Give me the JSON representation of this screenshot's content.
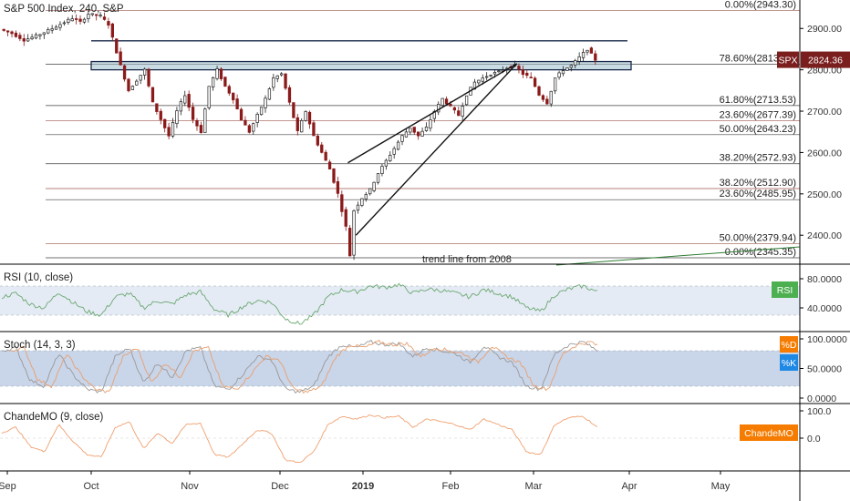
{
  "chart_data": {
    "type": "candlestick",
    "title": "S&P 500 Index, 240, S&P",
    "symbol": "SPX",
    "last_price": "2824.36",
    "y_axis_ticks": [
      "2900.00",
      "2800.00",
      "2700.00",
      "2600.00",
      "2500.00",
      "2400.00"
    ],
    "ylim": [
      2330,
      2960
    ],
    "x_date_labels": [
      "Sep",
      "Oct",
      "Nov",
      "Dec",
      "2019",
      "Feb",
      "Mar",
      "Apr",
      "May"
    ],
    "price_anchors": [
      {
        "t": 0,
        "p": 2898
      },
      {
        "t": 3,
        "p": 2888
      },
      {
        "t": 6,
        "p": 2872
      },
      {
        "t": 9,
        "p": 2882
      },
      {
        "t": 12,
        "p": 2895
      },
      {
        "t": 15,
        "p": 2910
      },
      {
        "t": 18,
        "p": 2925
      },
      {
        "t": 20,
        "p": 2915
      },
      {
        "t": 22,
        "p": 2935
      },
      {
        "t": 25,
        "p": 2930
      },
      {
        "t": 27,
        "p": 2910
      },
      {
        "t": 30,
        "p": 2810
      },
      {
        "t": 32,
        "p": 2750
      },
      {
        "t": 34,
        "p": 2775
      },
      {
        "t": 36,
        "p": 2800
      },
      {
        "t": 38,
        "p": 2720
      },
      {
        "t": 40,
        "p": 2680
      },
      {
        "t": 42,
        "p": 2640
      },
      {
        "t": 44,
        "p": 2700
      },
      {
        "t": 46,
        "p": 2740
      },
      {
        "t": 48,
        "p": 2680
      },
      {
        "t": 50,
        "p": 2650
      },
      {
        "t": 52,
        "p": 2760
      },
      {
        "t": 54,
        "p": 2800
      },
      {
        "t": 56,
        "p": 2760
      },
      {
        "t": 58,
        "p": 2730
      },
      {
        "t": 60,
        "p": 2680
      },
      {
        "t": 62,
        "p": 2650
      },
      {
        "t": 64,
        "p": 2690
      },
      {
        "t": 66,
        "p": 2730
      },
      {
        "t": 68,
        "p": 2780
      },
      {
        "t": 70,
        "p": 2790
      },
      {
        "t": 72,
        "p": 2720
      },
      {
        "t": 74,
        "p": 2650
      },
      {
        "t": 76,
        "p": 2700
      },
      {
        "t": 78,
        "p": 2640
      },
      {
        "t": 80,
        "p": 2600
      },
      {
        "t": 82,
        "p": 2560
      },
      {
        "t": 84,
        "p": 2500
      },
      {
        "t": 86,
        "p": 2420
      },
      {
        "t": 87,
        "p": 2351
      },
      {
        "t": 88,
        "p": 2460
      },
      {
        "t": 90,
        "p": 2490
      },
      {
        "t": 92,
        "p": 2510
      },
      {
        "t": 94,
        "p": 2550
      },
      {
        "t": 96,
        "p": 2580
      },
      {
        "t": 98,
        "p": 2610
      },
      {
        "t": 100,
        "p": 2640
      },
      {
        "t": 102,
        "p": 2660
      },
      {
        "t": 104,
        "p": 2640
      },
      {
        "t": 106,
        "p": 2660
      },
      {
        "t": 108,
        "p": 2700
      },
      {
        "t": 110,
        "p": 2730
      },
      {
        "t": 112,
        "p": 2710
      },
      {
        "t": 114,
        "p": 2690
      },
      {
        "t": 116,
        "p": 2740
      },
      {
        "t": 118,
        "p": 2770
      },
      {
        "t": 120,
        "p": 2780
      },
      {
        "t": 122,
        "p": 2790
      },
      {
        "t": 124,
        "p": 2795
      },
      {
        "t": 126,
        "p": 2805
      },
      {
        "t": 128,
        "p": 2810
      },
      {
        "t": 130,
        "p": 2790
      },
      {
        "t": 132,
        "p": 2780
      },
      {
        "t": 134,
        "p": 2740
      },
      {
        "t": 136,
        "p": 2720
      },
      {
        "t": 138,
        "p": 2780
      },
      {
        "t": 140,
        "p": 2800
      },
      {
        "t": 142,
        "p": 2810
      },
      {
        "t": 144,
        "p": 2830
      },
      {
        "t": 146,
        "p": 2850
      },
      {
        "t": 148,
        "p": 2824.36
      }
    ],
    "fib_right_side": [
      {
        "label": "0.00%(2943.30)",
        "price": 2943.3,
        "color": "#8b3a2e"
      },
      {
        "label": "78.60%(2813.19)",
        "price": 2813.19,
        "color": "#222222"
      },
      {
        "label": "61.80%(2713.53)",
        "price": 2713.53,
        "color": "#222222"
      },
      {
        "label": "23.60%(2677.39)",
        "price": 2677.39,
        "color": "#8b3a2e"
      },
      {
        "label": "50.00%(2643.23)",
        "price": 2643.23,
        "color": "#222222"
      },
      {
        "label": "38.20%(2572.93)",
        "price": 2572.93,
        "color": "#222222"
      },
      {
        "label": "38.20%(2512.90)",
        "price": 2512.9,
        "color": "#8b3a2e"
      },
      {
        "label": "23.60%(2485.95)",
        "price": 2485.95,
        "color": "#222222"
      },
      {
        "label": "50.00%(2379.94)",
        "price": 2379.94,
        "color": "#8b3a2e"
      },
      {
        "label": "0.00%(2345.35)",
        "price": 2345.35,
        "color": "#222222"
      }
    ],
    "resistance_line_price": 2870,
    "resistance_box": {
      "price_low": 2800,
      "price_high": 2820
    },
    "annotation": "trend line from 2008",
    "indicators": [
      {
        "name": "RSI (10, close)",
        "badge": "RSI",
        "badge_color": "#4caf50",
        "line_color": "#6aa870",
        "axis_ticks": [
          "80.0000",
          "40.0000"
        ],
        "range": [
          15,
          90
        ],
        "band": [
          30,
          70
        ],
        "anchors": [
          55,
          60,
          45,
          40,
          62,
          48,
          35,
          30,
          55,
          60,
          40,
          50,
          45,
          58,
          62,
          38,
          30,
          42,
          50,
          48,
          25,
          18,
          30,
          55,
          65,
          62,
          70,
          68,
          72,
          60,
          66,
          64,
          60,
          55,
          65,
          60,
          55,
          40,
          35,
          58,
          66,
          70,
          62
        ]
      },
      {
        "name": "Stoch (14, 3, 3)",
        "badges": [
          {
            "text": "%D",
            "color": "#f57c00"
          },
          {
            "text": "%K",
            "color": "#1e88e5"
          }
        ],
        "k_color": "#999999",
        "d_color": "#e8a070",
        "axis_ticks": [
          "100.0000",
          "50.0000",
          "0.0000"
        ],
        "range": [
          0,
          100
        ],
        "band": [
          20,
          80
        ],
        "anchors": [
          80,
          85,
          30,
          20,
          75,
          40,
          15,
          10,
          70,
          85,
          25,
          60,
          35,
          80,
          85,
          20,
          15,
          40,
          70,
          65,
          15,
          10,
          20,
          70,
          90,
          85,
          95,
          90,
          92,
          70,
          85,
          80,
          75,
          60,
          88,
          70,
          60,
          20,
          15,
          75,
          90,
          95,
          80
        ]
      },
      {
        "name": "ChandeMO (9, close)",
        "badge": "ChandeMO",
        "badge_color": "#f57c00",
        "line_color": "#f0a070",
        "axis_ticks": [
          "100.0",
          "0.0"
        ],
        "range": [
          -100,
          100
        ],
        "anchors": [
          20,
          40,
          -30,
          -50,
          50,
          -10,
          -60,
          -70,
          40,
          60,
          -40,
          20,
          -20,
          50,
          55,
          -60,
          -70,
          -20,
          30,
          20,
          -80,
          -90,
          -50,
          50,
          80,
          70,
          85,
          75,
          80,
          40,
          70,
          60,
          50,
          30,
          70,
          50,
          30,
          -50,
          -60,
          50,
          75,
          80,
          40
        ]
      }
    ]
  }
}
